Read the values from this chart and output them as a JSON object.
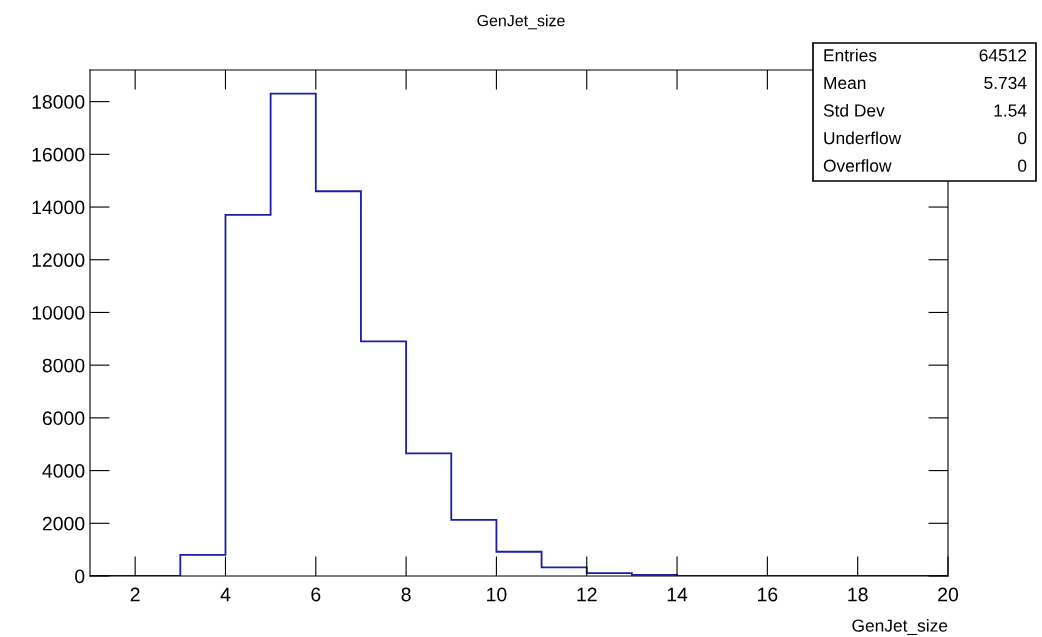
{
  "chart_data": {
    "type": "histogram",
    "title": "GenJet_size",
    "xlabel": "GenJet_size",
    "bins": [
      1,
      2,
      3,
      4,
      5,
      6,
      7,
      8,
      9,
      10,
      11,
      12,
      13,
      14,
      15,
      16,
      17,
      18,
      19,
      20
    ],
    "values": [
      0,
      0,
      800,
      13700,
      18300,
      14600,
      8900,
      4650,
      2130,
      920,
      330,
      110,
      40,
      0,
      0,
      0,
      0,
      0,
      0
    ],
    "color": "#1c1ca8",
    "xlim": [
      1,
      20
    ],
    "xticks": [
      2,
      4,
      6,
      8,
      10,
      12,
      14,
      16,
      18,
      20
    ],
    "ylim": [
      0,
      19200
    ],
    "yticks": [
      0,
      2000,
      4000,
      6000,
      8000,
      10000,
      12000,
      14000,
      16000,
      18000
    ],
    "annotations": [
      "Entries",
      "64512",
      "Mean",
      "5.734",
      "Std Dev",
      "1.54",
      "Underflow",
      "0",
      "Overflow",
      "0"
    ],
    "grid": false,
    "legend": false
  }
}
